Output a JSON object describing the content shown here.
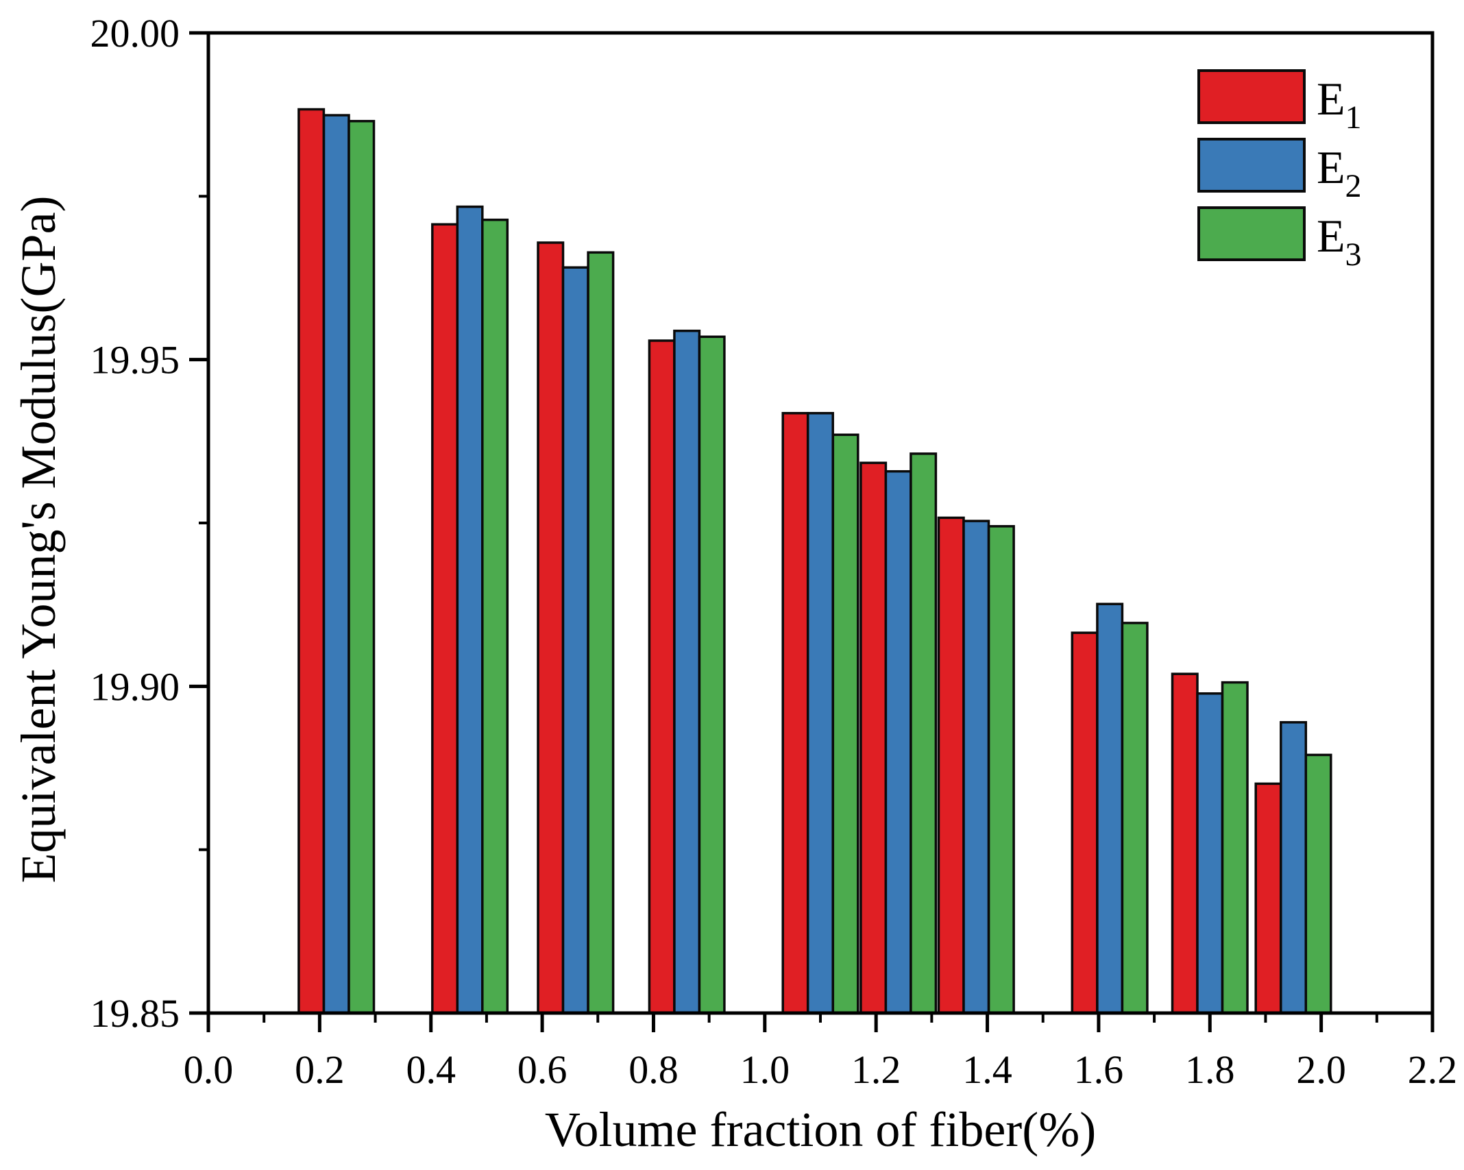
{
  "chart_data": {
    "type": "bar",
    "title": "",
    "xlabel": "Volume fraction of fiber(%)",
    "ylabel": "Equivalent Young's Modulus(GPa)",
    "xlim": [
      0.0,
      2.2
    ],
    "ylim": [
      19.85,
      20.0
    ],
    "grid": false,
    "x_tick_labels": [
      "0.0",
      "0.2",
      "0.4",
      "0.6",
      "0.8",
      "1.0",
      "1.2",
      "1.4",
      "1.6",
      "1.8",
      "2.0",
      "2.2"
    ],
    "x_minor_ticks": [
      0.1,
      0.3,
      0.5,
      0.7,
      0.9,
      1.1,
      1.3,
      1.5,
      1.7,
      1.9,
      2.1
    ],
    "y_tick_labels": [
      "19.85",
      "19.90",
      "19.95",
      "20.00"
    ],
    "y_minor_ticks": [
      19.875,
      19.925,
      19.975
    ],
    "categories": [
      0.23,
      0.47,
      0.66,
      0.86,
      1.1,
      1.24,
      1.38,
      1.62,
      1.8,
      1.95
    ],
    "bar_width": 0.045,
    "series": [
      {
        "name": "E",
        "sub": "1",
        "color": "#e01f24",
        "values": [
          19.9883,
          19.9707,
          19.9679,
          19.9529,
          19.9418,
          19.9342,
          19.9258,
          19.9082,
          19.9019,
          19.8851
        ]
      },
      {
        "name": "E",
        "sub": "2",
        "color": "#3a7ab7",
        "values": [
          19.9874,
          19.9734,
          19.9641,
          19.9544,
          19.9418,
          19.9329,
          19.9253,
          19.9126,
          19.8989,
          19.8945
        ]
      },
      {
        "name": "E",
        "sub": "3",
        "color": "#4cab4e",
        "values": [
          19.9865,
          19.9714,
          19.9664,
          19.9535,
          19.9385,
          19.9356,
          19.9245,
          19.9097,
          19.9006,
          19.8895
        ]
      }
    ],
    "legend_position": "top-right",
    "colors": {
      "bar_outline": "#0a0a0a",
      "axis": "#000000",
      "text": "#000000",
      "background": "#ffffff"
    }
  }
}
